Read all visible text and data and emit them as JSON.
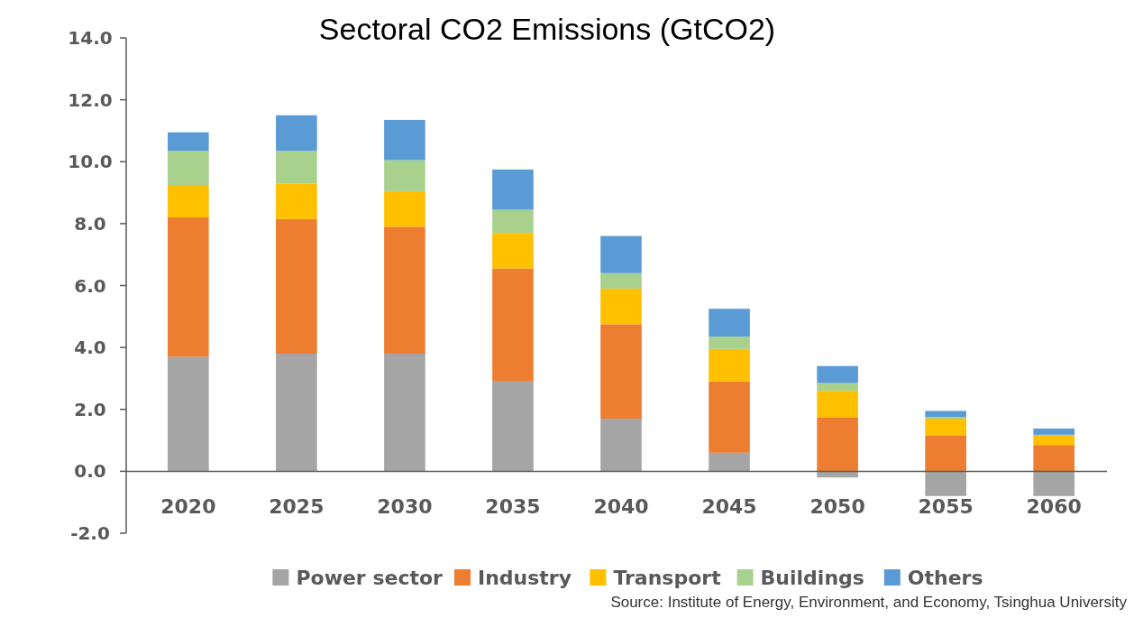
{
  "chart_data": {
    "type": "bar",
    "stacked": true,
    "title": "Sectoral CO2 Emissions (GtCO2)",
    "categories": [
      "2020",
      "2025",
      "2030",
      "2035",
      "2040",
      "2045",
      "2050",
      "2055",
      "2060"
    ],
    "series": [
      {
        "name": "Power sector",
        "color": "#a5a5a5",
        "values": [
          3.7,
          3.8,
          3.8,
          2.9,
          1.7,
          0.6,
          -0.2,
          -0.8,
          -0.8
        ]
      },
      {
        "name": "Industry",
        "color": "#ed7d31",
        "values": [
          4.5,
          4.35,
          4.1,
          3.65,
          3.05,
          2.3,
          1.75,
          1.15,
          0.85
        ]
      },
      {
        "name": "Transport",
        "color": "#ffc000",
        "values": [
          1.05,
          1.15,
          1.15,
          1.15,
          1.15,
          1.05,
          0.85,
          0.55,
          0.3
        ]
      },
      {
        "name": "Buildings",
        "color": "#a9d18e",
        "values": [
          1.1,
          1.05,
          1.0,
          0.75,
          0.5,
          0.4,
          0.25,
          0.05,
          0.03
        ]
      },
      {
        "name": "Others",
        "color": "#5b9bd5",
        "values": [
          0.6,
          1.15,
          1.3,
          1.3,
          1.2,
          0.9,
          0.55,
          0.2,
          0.2
        ]
      }
    ],
    "ylim": [
      -2,
      14
    ],
    "yticks": [
      {
        "value": -2,
        "label": "-2.0"
      },
      {
        "value": 0,
        "label": "0.0"
      },
      {
        "value": 2,
        "label": "2.0"
      },
      {
        "value": 4,
        "label": "4.0"
      },
      {
        "value": 6,
        "label": "6.0"
      },
      {
        "value": 8,
        "label": "8.0"
      },
      {
        "value": 10,
        "label": "10.0"
      },
      {
        "value": 12,
        "label": "12.0"
      },
      {
        "value": 14,
        "label": "14.0"
      }
    ],
    "grid": false,
    "legend": "bottom",
    "annotations": [
      "Source: Institute of Energy, Environment, and Economy, Tsinghua University"
    ]
  }
}
